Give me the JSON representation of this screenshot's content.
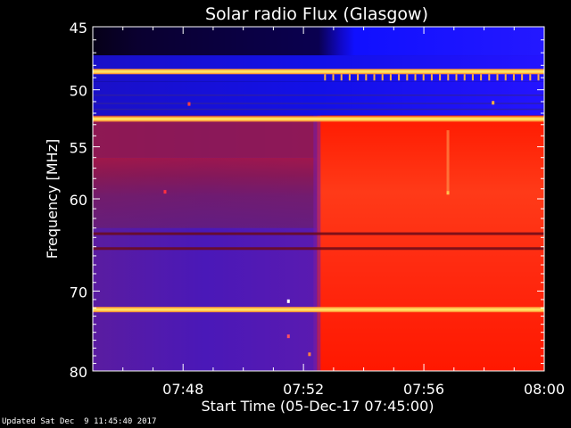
{
  "chart_data": {
    "type": "heatmap",
    "title": "Solar radio Flux (Glasgow)",
    "xlabel": "Start Time (05-Dec-17 07:45:00)",
    "ylabel": "Frequency [MHz]",
    "x_ticks": [
      "07:48",
      "07:52",
      "07:56",
      "08:00"
    ],
    "x_tick_minutes": [
      3,
      7,
      11,
      15
    ],
    "xlim_minutes": [
      0,
      15
    ],
    "y_ticks": [
      45,
      50,
      55,
      60,
      70,
      80
    ],
    "ylim": [
      80,
      45
    ],
    "y_scale": "log",
    "colormap": [
      "#0a00ff",
      "#5a1fb4",
      "#a01e3c",
      "#ff2a00",
      "#ffd200"
    ],
    "transition_minute": 7.45,
    "bright_bands_mhz": [
      48.5,
      52.5,
      72.2
    ],
    "dark_bands_mhz": [
      63.6,
      65.2
    ],
    "grid": false,
    "legend": "none"
  },
  "footer": {
    "updated": "Updated Sat Dec  9 11:45:40 2017"
  },
  "colors": {
    "background": "#000000",
    "text": "#ffffff",
    "axis": "#ffffff"
  }
}
